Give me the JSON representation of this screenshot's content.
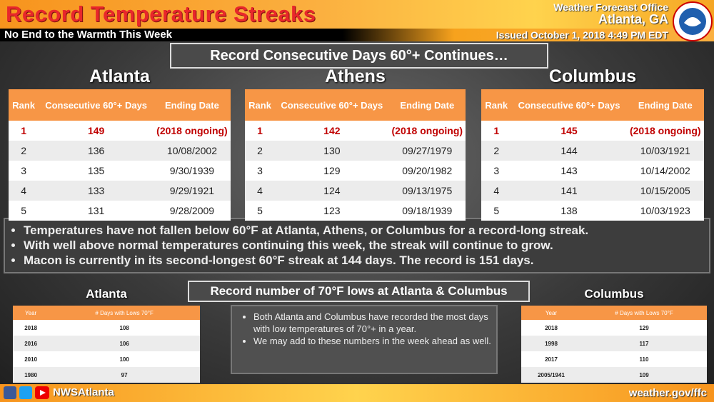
{
  "header": {
    "title": "Record Temperature Streaks",
    "subtitle": "No End to the Warmth This Week",
    "office": "Weather Forecast Office",
    "location": "Atlanta, GA",
    "issued": "Issued October 1, 2018 4:49 PM EDT"
  },
  "section1": {
    "banner": "Record Consecutive Days 60°+ Continues…",
    "tables": [
      {
        "city": "Atlanta",
        "headers": [
          "Rank",
          "Consecutive 60°+ Days",
          "Ending Date"
        ],
        "rows": [
          [
            1,
            149,
            "(2018 ongoing)"
          ],
          [
            2,
            136,
            "10/08/2002"
          ],
          [
            3,
            135,
            "9/30/1939"
          ],
          [
            4,
            133,
            "9/29/1921"
          ],
          [
            5,
            131,
            "9/28/2009"
          ]
        ]
      },
      {
        "city": "Athens",
        "headers": [
          "Rank",
          "Consecutive 60°+ Days",
          "Ending Date"
        ],
        "rows": [
          [
            1,
            142,
            "(2018 ongoing)"
          ],
          [
            2,
            130,
            "09/27/1979"
          ],
          [
            3,
            129,
            "09/20/1982"
          ],
          [
            4,
            124,
            "09/13/1975"
          ],
          [
            5,
            123,
            "09/18/1939"
          ]
        ]
      },
      {
        "city": "Columbus",
        "headers": [
          "Rank",
          "Consecutive 60°+ Days",
          "Ending Date"
        ],
        "rows": [
          [
            1,
            145,
            "(2018 ongoing)"
          ],
          [
            2,
            144,
            "10/03/1921"
          ],
          [
            3,
            143,
            "10/14/2002"
          ],
          [
            4,
            141,
            "10/15/2005"
          ],
          [
            5,
            138,
            "10/03/1923"
          ]
        ]
      }
    ],
    "bullets": [
      "Temperatures have not fallen below 60°F at Atlanta, Athens, or Columbus for a record-long streak.",
      "With well above normal temperatures continuing this week, the streak will continue to grow.",
      "Macon is currently in its second-longest 60°F streak at 144 days. The record is 151 days."
    ]
  },
  "section2": {
    "banner": "Record number of 70°F lows at Atlanta & Columbus",
    "tables": [
      {
        "city": "Atlanta",
        "headers": [
          "Year",
          "# Days with Lows 70°F"
        ],
        "rows": [
          [
            2018,
            108
          ],
          [
            2016,
            106
          ],
          [
            2010,
            100
          ],
          [
            1980,
            97
          ]
        ]
      },
      {
        "city": "Columbus",
        "headers": [
          "Year",
          "# Days with Lows 70°F"
        ],
        "rows": [
          [
            2018,
            129
          ],
          [
            1998,
            117
          ],
          [
            2017,
            110
          ],
          [
            "2005/1941",
            109
          ]
        ]
      }
    ],
    "bullets": [
      "Both Atlanta and Columbus have recorded the most days with low temperatures of 70°+ in a year.",
      "We may add to these numbers in the week ahead as well."
    ]
  },
  "footer": {
    "social": "NWSAtlanta",
    "url": "weather.gov/ffc"
  }
}
